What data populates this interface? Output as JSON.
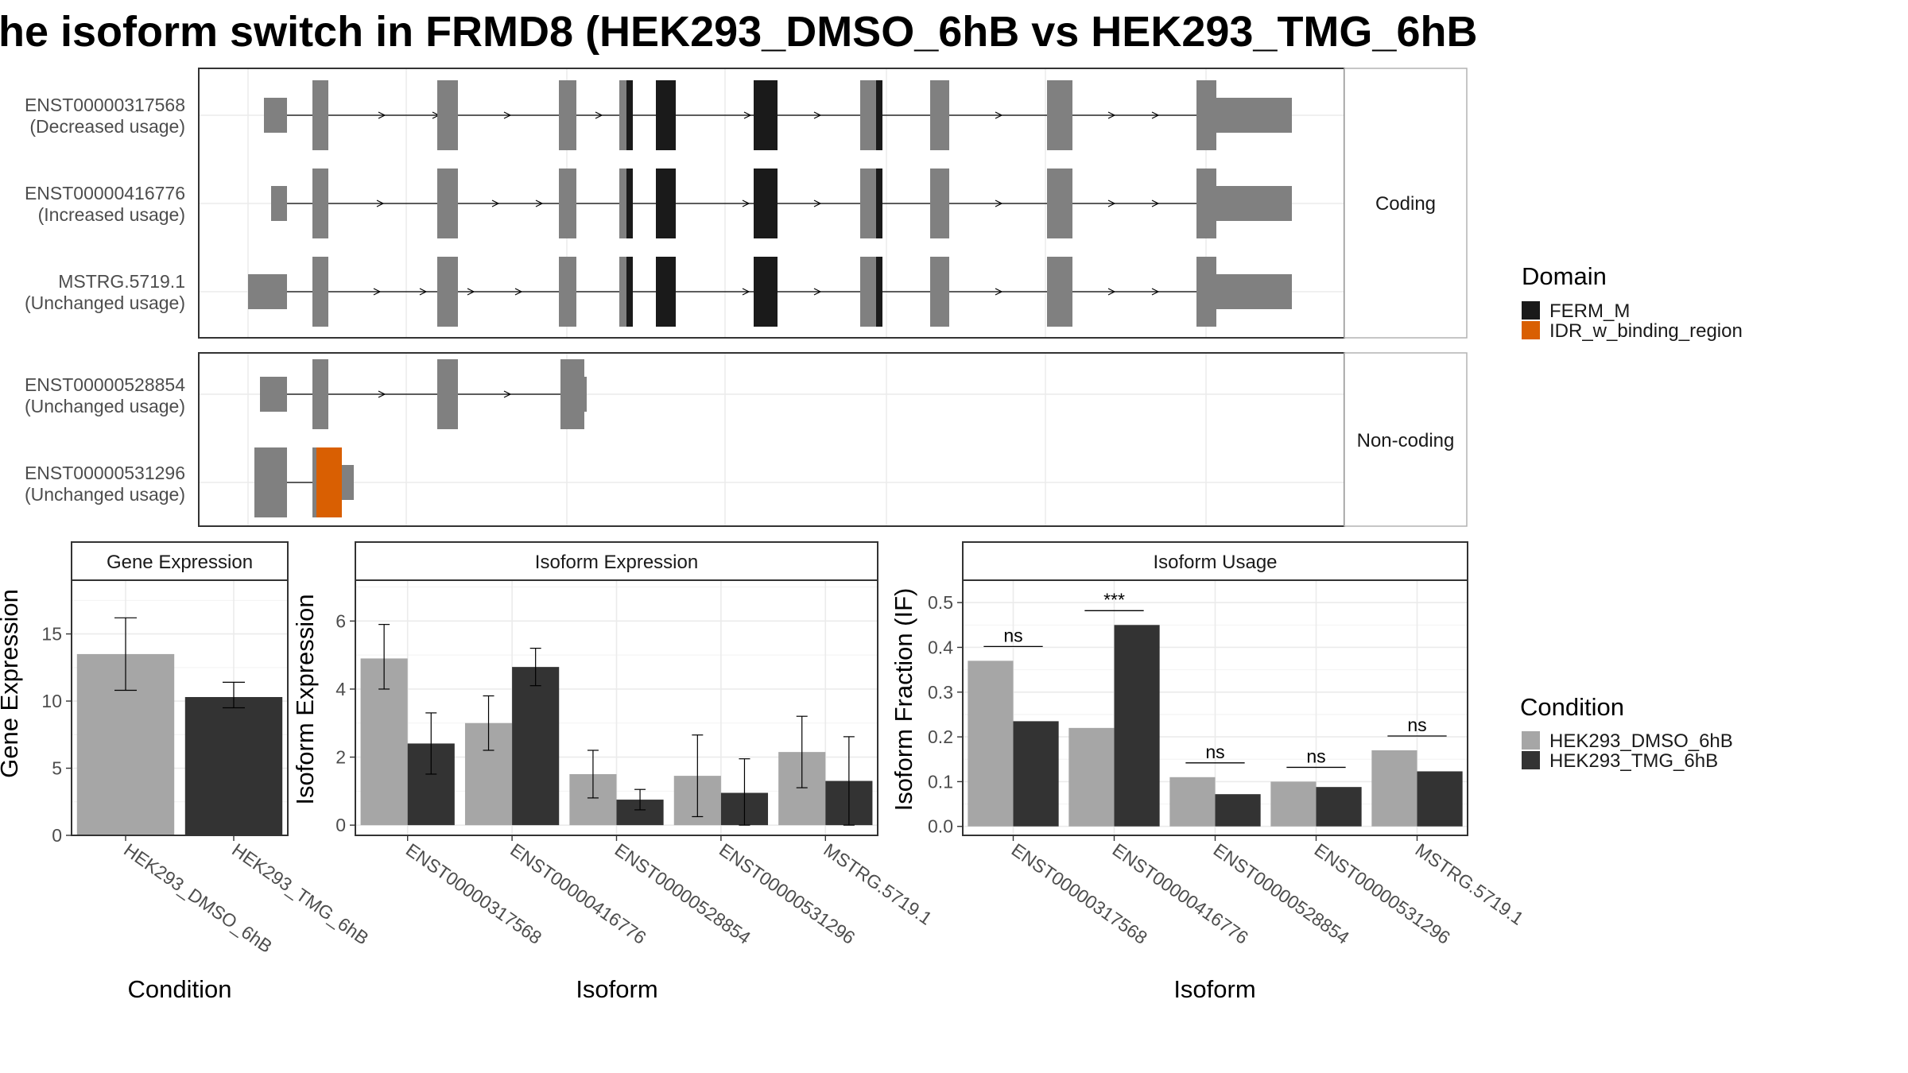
{
  "title": "he isoform switch in FRMD8 (HEK293_DMSO_6hB vs HEK293_TMG_6hB",
  "colors": {
    "exon": "#808080",
    "ferm": "#1a1a1a",
    "idr": "#d95f02",
    "dmso": "#a6a6a6",
    "tmg": "#333333",
    "panel_border": "#333333",
    "strip_border": "#b3b3b3",
    "grid": "#ebebeb"
  },
  "structure": {
    "groups": [
      {
        "label": "Coding",
        "isoforms": [
          {
            "id": "ENST00000317568",
            "usage": "(Decreased usage)"
          },
          {
            "id": "ENST00000416776",
            "usage": "(Increased usage)"
          },
          {
            "id": "MSTRG.5719.1",
            "usage": "(Unchanged usage)"
          }
        ]
      },
      {
        "label": "Non-coding",
        "isoforms": [
          {
            "id": "ENST00000528854",
            "usage": "(Unchanged usage)"
          },
          {
            "id": "ENST00000531296",
            "usage": "(Unchanged usage)"
          }
        ]
      }
    ]
  },
  "domain_legend": {
    "title": "Domain",
    "items": [
      {
        "label": "FERM_M",
        "color": "#1a1a1a"
      },
      {
        "label": "IDR_w_binding_region",
        "color": "#d95f02"
      }
    ]
  },
  "condition_legend": {
    "title": "Condition",
    "items": [
      {
        "label": "HEK293_DMSO_6hB",
        "color": "#a6a6a6"
      },
      {
        "label": "HEK293_TMG_6hB",
        "color": "#333333"
      }
    ]
  },
  "chart_data": [
    {
      "type": "bar",
      "title": "Gene Expression",
      "xlabel": "Condition",
      "ylabel": "Gene Expression",
      "categories": [
        "HEK293_DMSO_6hB",
        "HEK293_TMG_6hB"
      ],
      "values": [
        13.5,
        10.3
      ],
      "error_low": [
        10.8,
        9.5
      ],
      "error_high": [
        16.2,
        11.4
      ],
      "ylim": [
        0,
        19
      ],
      "yticks": [
        0,
        5,
        10,
        15
      ]
    },
    {
      "type": "bar",
      "title": "Isoform Expression",
      "xlabel": "Isoform",
      "ylabel": "Isoform Expression",
      "categories": [
        "ENST00000317568",
        "ENST00000416776",
        "ENST00000528854",
        "ENST00000531296",
        "MSTRG.5719.1"
      ],
      "series": [
        {
          "values": [
            4.9,
            3.0,
            1.5,
            1.45,
            2.15
          ],
          "low": [
            4.0,
            2.2,
            0.8,
            0.25,
            1.1
          ],
          "high": [
            5.9,
            3.8,
            2.2,
            2.65,
            3.2
          ]
        },
        {
          "values": [
            2.4,
            4.65,
            0.75,
            0.95,
            1.3
          ],
          "low": [
            1.5,
            4.1,
            0.45,
            0.0,
            0.0
          ],
          "high": [
            3.3,
            5.2,
            1.05,
            1.95,
            2.6
          ]
        }
      ],
      "ylim": [
        -0.3,
        7.2
      ],
      "yticks": [
        0,
        2,
        4,
        6
      ]
    },
    {
      "type": "bar",
      "title": "Isoform Usage",
      "xlabel": "Isoform",
      "ylabel": "Isoform Fraction (IF)",
      "categories": [
        "ENST00000317568",
        "ENST00000416776",
        "ENST00000528854",
        "ENST00000531296",
        "MSTRG.5719.1"
      ],
      "series": [
        {
          "values": [
            0.37,
            0.22,
            0.11,
            0.1,
            0.17
          ]
        },
        {
          "values": [
            0.235,
            0.45,
            0.072,
            0.088,
            0.123
          ]
        }
      ],
      "significance": [
        "ns",
        "***",
        "ns",
        "ns",
        "ns"
      ],
      "ylim": [
        -0.02,
        0.55
      ],
      "yticks": [
        0.0,
        0.1,
        0.2,
        0.3,
        0.4,
        0.5
      ],
      "ytick_labels": [
        "0.0",
        "0.1",
        "0.2",
        "0.3",
        "0.4",
        "0.5"
      ]
    }
  ]
}
